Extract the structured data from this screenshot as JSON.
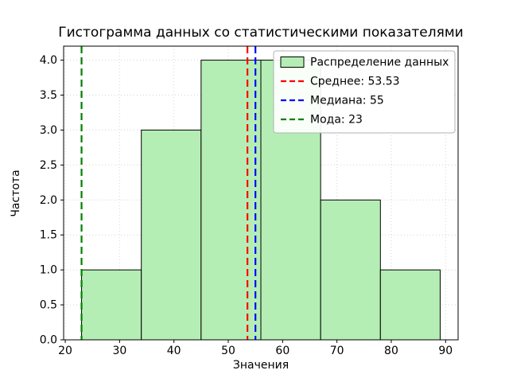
{
  "chart_data": {
    "type": "bar",
    "subtype": "histogram",
    "title": "Гистограмма данных со статистическими показателями",
    "xlabel": "Значения",
    "ylabel": "Частота",
    "bin_edges": [
      23,
      34,
      45,
      56,
      67,
      78,
      89
    ],
    "counts": [
      1,
      3,
      4,
      4,
      2,
      1
    ],
    "xlim": [
      19.7,
      92.3
    ],
    "ylim": [
      0,
      4.2
    ],
    "xticks": [
      20,
      30,
      40,
      50,
      60,
      70,
      80,
      90
    ],
    "yticks": [
      0.0,
      0.5,
      1.0,
      1.5,
      2.0,
      2.5,
      3.0,
      3.5,
      4.0
    ],
    "grid": true,
    "bar_fill": "#b4eeb4",
    "bar_edge": "#000000",
    "grid_color": "#d4d4d4",
    "stat_lines": [
      {
        "name": "mean-line",
        "label": "Среднее: 53.53",
        "value": 53.53,
        "color": "#ff0000"
      },
      {
        "name": "median-line",
        "label": "Медиана: 55",
        "value": 55,
        "color": "#0000ff"
      },
      {
        "name": "mode-line",
        "label": "Мода: 23",
        "value": 23,
        "color": "#008000"
      }
    ],
    "legend": {
      "position": "upper right",
      "entries": [
        {
          "label": "Распределение данных",
          "type": "patch",
          "color": "#b4eeb4",
          "edge": "#000000"
        },
        {
          "label": "Среднее: 53.53",
          "type": "dashed-line",
          "color": "#ff0000"
        },
        {
          "label": "Медиана: 55",
          "type": "dashed-line",
          "color": "#0000ff"
        },
        {
          "label": "Мода: 23",
          "type": "dashed-line",
          "color": "#008000"
        }
      ]
    }
  }
}
